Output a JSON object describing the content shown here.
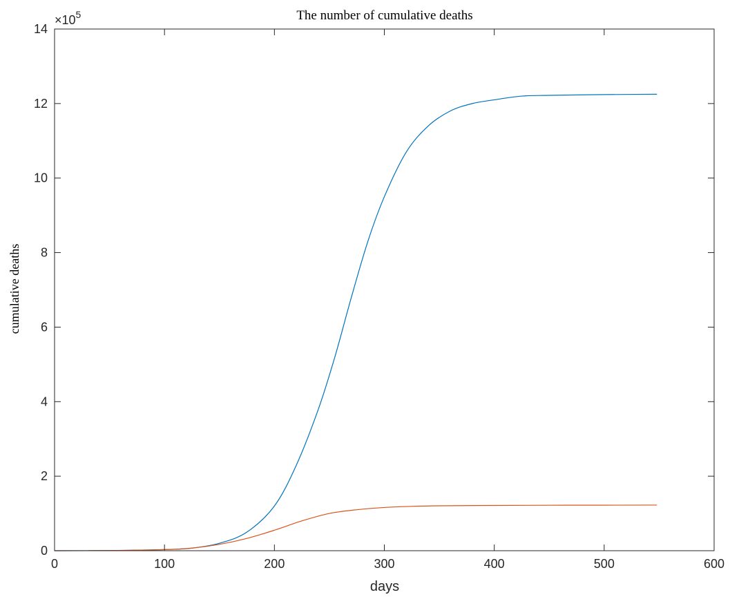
{
  "chart_data": {
    "type": "line",
    "title": "The number of cumulative deaths",
    "xlabel": "days",
    "ylabel": "cumulative deaths",
    "xlim": [
      0,
      600
    ],
    "ylim": [
      0,
      14
    ],
    "x_ticks": [
      0,
      100,
      200,
      300,
      400,
      500,
      600
    ],
    "y_ticks": [
      0,
      2,
      4,
      6,
      8,
      10,
      12,
      14
    ],
    "x_tick_labels": [
      "0",
      "100",
      "200",
      "300",
      "400",
      "500",
      "600"
    ],
    "y_tick_labels": [
      "0",
      "2",
      "4",
      "6",
      "8",
      "10",
      "12",
      "14"
    ],
    "y_exponent": {
      "base": "×10",
      "power": "5"
    },
    "grid": false,
    "series": [
      {
        "color": "#0072BD",
        "x": [
          0,
          50,
          100,
          125,
          150,
          175,
          200,
          220,
          240,
          255,
          270,
          285,
          300,
          320,
          340,
          360,
          380,
          400,
          425,
          450,
          500,
          548
        ],
        "y": [
          0,
          0.005,
          0.03,
          0.07,
          0.2,
          0.5,
          1.2,
          2.3,
          3.8,
          5.2,
          6.8,
          8.3,
          9.5,
          10.7,
          11.4,
          11.8,
          12.0,
          12.1,
          12.2,
          12.22,
          12.24,
          12.25
        ]
      },
      {
        "color": "#D95319",
        "x": [
          0,
          50,
          100,
          125,
          150,
          175,
          200,
          225,
          250,
          275,
          300,
          325,
          350,
          400,
          450,
          500,
          548
        ],
        "y": [
          0,
          0.005,
          0.03,
          0.07,
          0.17,
          0.33,
          0.55,
          0.8,
          1.0,
          1.1,
          1.16,
          1.19,
          1.205,
          1.215,
          1.22,
          1.222,
          1.225
        ]
      }
    ]
  }
}
